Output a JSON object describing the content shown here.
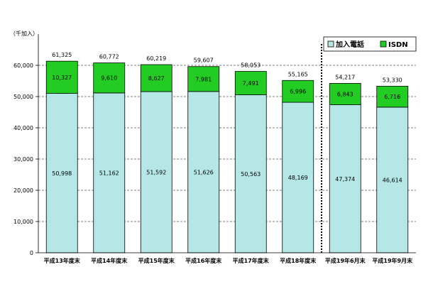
{
  "chart_data": {
    "type": "bar",
    "stacked": true,
    "unit_label": "（千加入）",
    "categories": [
      "平成13年度末",
      "平成14年度末",
      "平成15年度末",
      "平成16年度末",
      "平成17年度末",
      "平成18年度末",
      "平成19年6月末",
      "平成19年9月末"
    ],
    "series": [
      {
        "name": "加入電話",
        "color": "#b6e7e7",
        "values": [
          50998,
          51162,
          51592,
          51626,
          50563,
          48169,
          47374,
          46614
        ]
      },
      {
        "name": "ISDN",
        "color": "#22cc22",
        "values": [
          10327,
          9610,
          8627,
          7981,
          7491,
          6996,
          6843,
          6716
        ]
      }
    ],
    "totals": [
      61325,
      60772,
      60219,
      59607,
      58053,
      55165,
      54217,
      53330
    ],
    "yticks": [
      0,
      10000,
      20000,
      30000,
      40000,
      50000,
      60000
    ],
    "ylim": [
      0,
      70000
    ],
    "legend_position": "top-right",
    "divider_after_index": 5
  }
}
